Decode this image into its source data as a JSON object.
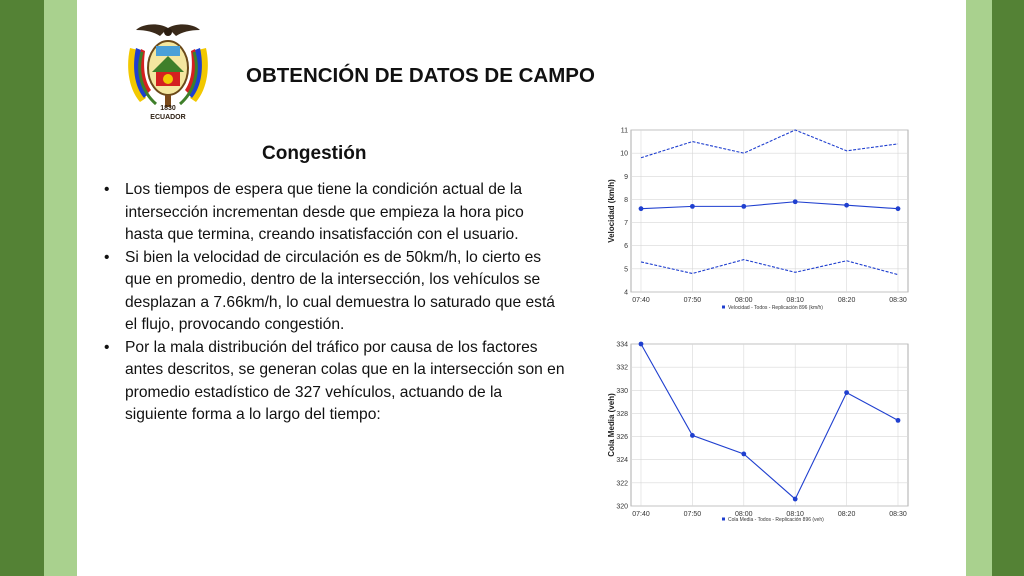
{
  "slide": {
    "title": "OBTENCIÓN DE DATOS DE CAMPO",
    "subtitle": "Congestión",
    "logo_text": "ECUADOR",
    "colors": {
      "bar_dark": "#548235",
      "bar_light": "#a9d18e",
      "line": "#1f3fcf"
    },
    "bullets": [
      "Los tiempos de espera que tiene la condición actual de la intersección incrementan desde que empieza la hora pico hasta que termina, creando insatisfacción con el usuario.",
      "Si bien la velocidad de circulación es de 50km/h, lo cierto es que en promedio, dentro de la intersección, los vehículos se desplazan a 7.66km/h, lo cual demuestra lo saturado que está el flujo, provocando congestión.",
      "Por la mala distribución del tráfico por causa de los factores antes descritos, se generan colas que en la intersección son en promedio estadístico de 327 vehículos, actuando de la siguiente forma a lo largo del tiempo:"
    ]
  },
  "chart_data": [
    {
      "type": "line",
      "ylabel": "Velocidad (km/h)",
      "x": [
        "07:40",
        "07:50",
        "08:00",
        "08:10",
        "08:20",
        "08:30"
      ],
      "ylim": [
        4,
        11
      ],
      "yticks": [
        4,
        5,
        6,
        7,
        8,
        9,
        10,
        11
      ],
      "grid": true,
      "legend": "Velocidad - Todos - Replicación 896 (km/h)",
      "series": [
        {
          "values": [
            9.8,
            10.5,
            10.0,
            11.0,
            10.1,
            10.4
          ],
          "style": "dashed",
          "markers": false
        },
        {
          "values": [
            7.6,
            7.7,
            7.7,
            7.9,
            7.75,
            7.6
          ],
          "style": "solid",
          "markers": true
        },
        {
          "values": [
            5.3,
            4.8,
            5.4,
            4.85,
            5.35,
            4.75
          ],
          "style": "dashed",
          "markers": false
        }
      ]
    },
    {
      "type": "line",
      "ylabel": "Cola Media (veh)",
      "x": [
        "07:40",
        "07:50",
        "08:00",
        "08:10",
        "08:20",
        "08:30"
      ],
      "ylim": [
        320,
        334
      ],
      "yticks": [
        320,
        322,
        324,
        326,
        328,
        330,
        332,
        334
      ],
      "grid": true,
      "legend": "Cola Media - Todos - Replicación 896 (veh)",
      "series": [
        {
          "values": [
            334,
            326.1,
            324.5,
            320.6,
            329.8,
            327.4
          ],
          "style": "solid",
          "markers": true
        }
      ]
    }
  ]
}
